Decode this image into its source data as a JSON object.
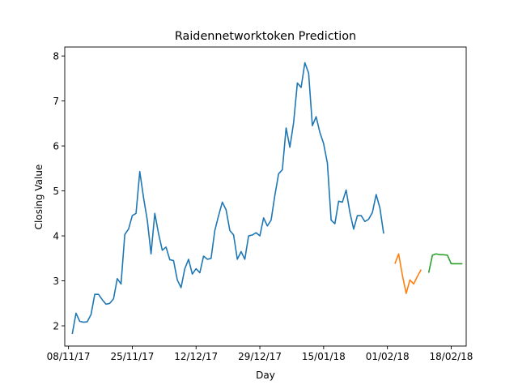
{
  "chart_data": {
    "type": "line",
    "title": "Raidennetworktoken Prediction",
    "xlabel": "Day",
    "ylabel": "Closing Value",
    "xlim": [
      "2017-11-07",
      "2018-02-22"
    ],
    "ylim": [
      1.55,
      8.2
    ],
    "grid": false,
    "x_ticks": [
      {
        "date": "2017-11-08",
        "label": "08/11/17"
      },
      {
        "date": "2017-11-25",
        "label": "25/11/17"
      },
      {
        "date": "2017-12-12",
        "label": "12/12/17"
      },
      {
        "date": "2017-12-29",
        "label": "29/12/17"
      },
      {
        "date": "2018-01-15",
        "label": "15/01/18"
      },
      {
        "date": "2018-02-01",
        "label": "01/02/18"
      },
      {
        "date": "2018-02-18",
        "label": "18/02/18"
      }
    ],
    "y_ticks": [
      2,
      3,
      4,
      5,
      6,
      7,
      8
    ],
    "series": [
      {
        "color": "#1f77b4",
        "points": [
          [
            "2017-11-09",
            1.82
          ],
          [
            "2017-11-10",
            2.28
          ],
          [
            "2017-11-11",
            2.1
          ],
          [
            "2017-11-12",
            2.08
          ],
          [
            "2017-11-13",
            2.09
          ],
          [
            "2017-11-14",
            2.25
          ],
          [
            "2017-11-15",
            2.7
          ],
          [
            "2017-11-16",
            2.7
          ],
          [
            "2017-11-17",
            2.58
          ],
          [
            "2017-11-18",
            2.48
          ],
          [
            "2017-11-19",
            2.5
          ],
          [
            "2017-11-20",
            2.6
          ],
          [
            "2017-11-21",
            3.05
          ],
          [
            "2017-11-22",
            2.93
          ],
          [
            "2017-11-23",
            4.03
          ],
          [
            "2017-11-24",
            4.15
          ],
          [
            "2017-11-25",
            4.45
          ],
          [
            "2017-11-26",
            4.5
          ],
          [
            "2017-11-27",
            5.43
          ],
          [
            "2017-11-28",
            4.85
          ],
          [
            "2017-11-29",
            4.35
          ],
          [
            "2017-11-30",
            3.6
          ],
          [
            "2017-12-01",
            4.5
          ],
          [
            "2017-12-02",
            4.05
          ],
          [
            "2017-12-03",
            3.68
          ],
          [
            "2017-12-04",
            3.75
          ],
          [
            "2017-12-05",
            3.47
          ],
          [
            "2017-12-06",
            3.45
          ],
          [
            "2017-12-07",
            3.02
          ],
          [
            "2017-12-08",
            2.85
          ],
          [
            "2017-12-09",
            3.27
          ],
          [
            "2017-12-10",
            3.48
          ],
          [
            "2017-12-11",
            3.15
          ],
          [
            "2017-12-12",
            3.27
          ],
          [
            "2017-12-13",
            3.18
          ],
          [
            "2017-12-14",
            3.55
          ],
          [
            "2017-12-15",
            3.48
          ],
          [
            "2017-12-16",
            3.5
          ],
          [
            "2017-12-17",
            4.12
          ],
          [
            "2017-12-18",
            4.45
          ],
          [
            "2017-12-19",
            4.75
          ],
          [
            "2017-12-20",
            4.58
          ],
          [
            "2017-12-21",
            4.12
          ],
          [
            "2017-12-22",
            4.02
          ],
          [
            "2017-12-23",
            3.48
          ],
          [
            "2017-12-24",
            3.65
          ],
          [
            "2017-12-25",
            3.48
          ],
          [
            "2017-12-26",
            4.0
          ],
          [
            "2017-12-27",
            4.02
          ],
          [
            "2017-12-28",
            4.07
          ],
          [
            "2017-12-29",
            4.0
          ],
          [
            "2017-12-30",
            4.4
          ],
          [
            "2017-12-31",
            4.22
          ],
          [
            "2018-01-01",
            4.35
          ],
          [
            "2018-01-02",
            4.9
          ],
          [
            "2018-01-03",
            5.38
          ],
          [
            "2018-01-04",
            5.47
          ],
          [
            "2018-01-05",
            6.4
          ],
          [
            "2018-01-06",
            5.97
          ],
          [
            "2018-01-07",
            6.52
          ],
          [
            "2018-01-08",
            7.4
          ],
          [
            "2018-01-09",
            7.3
          ],
          [
            "2018-01-10",
            7.85
          ],
          [
            "2018-01-11",
            7.62
          ],
          [
            "2018-01-12",
            6.45
          ],
          [
            "2018-01-13",
            6.65
          ],
          [
            "2018-01-14",
            6.3
          ],
          [
            "2018-01-15",
            6.05
          ],
          [
            "2018-01-16",
            5.62
          ],
          [
            "2018-01-17",
            4.35
          ],
          [
            "2018-01-18",
            4.27
          ],
          [
            "2018-01-19",
            4.77
          ],
          [
            "2018-01-20",
            4.75
          ],
          [
            "2018-01-21",
            5.02
          ],
          [
            "2018-01-22",
            4.52
          ],
          [
            "2018-01-23",
            4.15
          ],
          [
            "2018-01-24",
            4.45
          ],
          [
            "2018-01-25",
            4.45
          ],
          [
            "2018-01-26",
            4.32
          ],
          [
            "2018-01-27",
            4.37
          ],
          [
            "2018-01-28",
            4.52
          ],
          [
            "2018-01-29",
            4.92
          ],
          [
            "2018-01-30",
            4.62
          ],
          [
            "2018-01-31",
            4.05
          ]
        ]
      },
      {
        "color": "#ff7f0e",
        "points": [
          [
            "2018-02-03",
            3.38
          ],
          [
            "2018-02-04",
            3.6
          ],
          [
            "2018-02-05",
            3.12
          ],
          [
            "2018-02-06",
            2.72
          ],
          [
            "2018-02-07",
            3.02
          ],
          [
            "2018-02-08",
            2.93
          ],
          [
            "2018-02-09",
            3.1
          ],
          [
            "2018-02-10",
            3.25
          ]
        ]
      },
      {
        "color": "#2ca02c",
        "points": [
          [
            "2018-02-12",
            3.18
          ],
          [
            "2018-02-13",
            3.57
          ],
          [
            "2018-02-14",
            3.6
          ],
          [
            "2018-02-15",
            3.58
          ],
          [
            "2018-02-16",
            3.58
          ],
          [
            "2018-02-17",
            3.57
          ],
          [
            "2018-02-18",
            3.38
          ],
          [
            "2018-02-19",
            3.38
          ],
          [
            "2018-02-20",
            3.38
          ],
          [
            "2018-02-21",
            3.38
          ]
        ]
      }
    ]
  }
}
